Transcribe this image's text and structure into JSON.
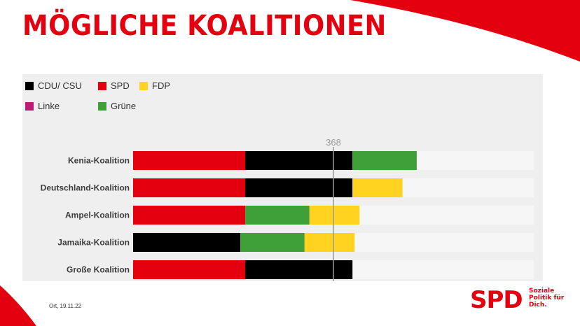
{
  "slide": {
    "title": "MÖGLICHE KOALITIONEN",
    "footer": "Ort, 19.11.22",
    "logo": {
      "mark": "SPD",
      "claim": [
        "Soziale",
        "Politik für",
        "Dich."
      ]
    },
    "colors": {
      "accent": "#e3000f"
    }
  },
  "chart_data": {
    "type": "bar",
    "orientation": "horizontal",
    "stacked": true,
    "title": "",
    "xlabel": "",
    "ylabel": "",
    "xlim": [
      0,
      736
    ],
    "reference_line": {
      "value": 368,
      "label": "368"
    },
    "legend_position": "top-left",
    "parties": [
      {
        "key": "cdu",
        "name": "CDU/ CSU",
        "color": "#000000"
      },
      {
        "key": "spd",
        "name": "SPD",
        "color": "#e3000f"
      },
      {
        "key": "fdp",
        "name": "FDP",
        "color": "#ffd320"
      },
      {
        "key": "linke",
        "name": "Linke",
        "color": "#be1a78"
      },
      {
        "key": "gruene",
        "name": "Grüne",
        "color": "#3fa03a"
      }
    ],
    "categories": [
      "Kenia-Koalition",
      "Deutschland-Koalition",
      "Ampel-Koalition",
      "Jamaika-Koalition",
      "Große Koalition"
    ],
    "bars": [
      {
        "label": "Kenia-Koalition",
        "segments": [
          {
            "party": "spd",
            "value": 206
          },
          {
            "party": "cdu",
            "value": 197
          },
          {
            "party": "gruene",
            "value": 118
          }
        ]
      },
      {
        "label": "Deutschland-Koalition",
        "segments": [
          {
            "party": "spd",
            "value": 206
          },
          {
            "party": "cdu",
            "value": 197
          },
          {
            "party": "fdp",
            "value": 92
          }
        ]
      },
      {
        "label": "Ampel-Koalition",
        "segments": [
          {
            "party": "spd",
            "value": 206
          },
          {
            "party": "gruene",
            "value": 118
          },
          {
            "party": "fdp",
            "value": 92
          }
        ]
      },
      {
        "label": "Jamaika-Koalition",
        "segments": [
          {
            "party": "cdu",
            "value": 197
          },
          {
            "party": "gruene",
            "value": 118
          },
          {
            "party": "fdp",
            "value": 92
          }
        ]
      },
      {
        "label": "Große Koalition",
        "segments": [
          {
            "party": "spd",
            "value": 206
          },
          {
            "party": "cdu",
            "value": 197
          }
        ]
      }
    ]
  }
}
